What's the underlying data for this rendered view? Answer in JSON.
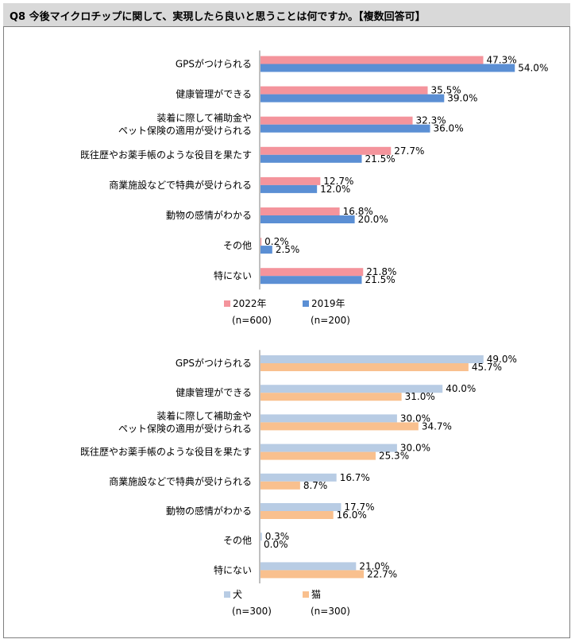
{
  "title": "Q8 今後マイクロチップに関して、実現したら良いと思うことは何ですか。【複数回答可】",
  "colors": {
    "pink": "#f4949c",
    "blue": "#5b8fd4",
    "lightblue": "#b8cce4",
    "orange": "#f9c08e",
    "axis": "#7f7f7f"
  },
  "chart_data": [
    {
      "type": "bar",
      "orientation": "horizontal",
      "categories": [
        [
          "GPSがつけられる"
        ],
        [
          "健康管理ができる"
        ],
        [
          "装着に際して補助金や",
          "ペット保険の適用が受けられる"
        ],
        [
          "既往歴やお薬手帳のような役目を果たす"
        ],
        [
          "商業施設などで特典が受けられる"
        ],
        [
          "動物の感情がわかる"
        ],
        [
          "その他"
        ],
        [
          "特にない"
        ]
      ],
      "series": [
        {
          "name": "2022年",
          "sample": "(n=600)",
          "color": "#f4949c",
          "values": [
            47.3,
            35.5,
            32.3,
            27.7,
            12.7,
            16.8,
            0.2,
            21.8
          ]
        },
        {
          "name": "2019年",
          "sample": "(n=200)",
          "color": "#5b8fd4",
          "values": [
            54.0,
            39.0,
            36.0,
            21.5,
            12.0,
            20.0,
            2.5,
            21.5
          ]
        }
      ],
      "xlim": [
        0,
        60
      ],
      "value_suffix": "%"
    },
    {
      "type": "bar",
      "orientation": "horizontal",
      "categories": [
        [
          "GPSがつけられる"
        ],
        [
          "健康管理ができる"
        ],
        [
          "装着に際して補助金や",
          "ペット保険の適用が受けられる"
        ],
        [
          "既往歴やお薬手帳のような役目を果たす"
        ],
        [
          "商業施設などで特典が受けられる"
        ],
        [
          "動物の感情がわかる"
        ],
        [
          "その他"
        ],
        [
          "特にない"
        ]
      ],
      "series": [
        {
          "name": "犬",
          "sample": "(n=300)",
          "color": "#b8cce4",
          "values": [
            49.0,
            40.0,
            30.0,
            30.0,
            16.7,
            17.7,
            0.3,
            21.0
          ]
        },
        {
          "name": "猫",
          "sample": "(n=300)",
          "color": "#f9c08e",
          "values": [
            45.7,
            31.0,
            34.7,
            25.3,
            8.7,
            16.0,
            0.0,
            22.7
          ]
        }
      ],
      "xlim": [
        0,
        60
      ],
      "value_suffix": "%"
    }
  ]
}
